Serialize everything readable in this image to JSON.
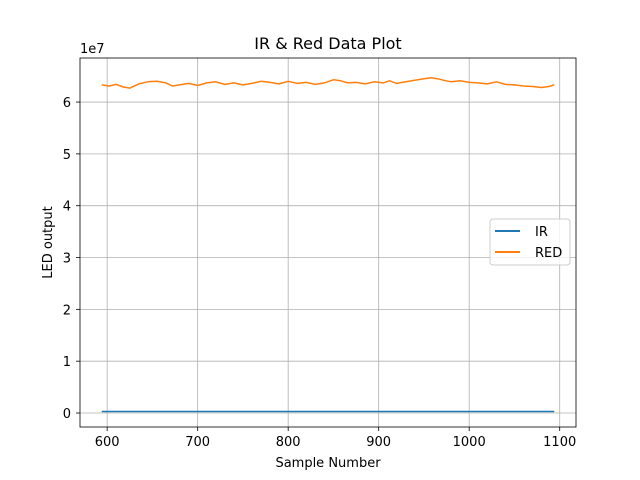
{
  "chart_data": {
    "type": "line",
    "title": "IR & Red Data Plot",
    "xlabel": "Sample Number",
    "ylabel": "LED output",
    "y_offset_label": "1e7",
    "xlim": [
      570,
      1118
    ],
    "ylim": [
      -2700000,
      68500000
    ],
    "x_ticks": [
      600,
      700,
      800,
      900,
      1000,
      1100
    ],
    "y_ticks": [
      0,
      10000000,
      20000000,
      30000000,
      40000000,
      50000000,
      60000000
    ],
    "y_tick_labels": [
      "0",
      "1",
      "2",
      "3",
      "4",
      "5",
      "6"
    ],
    "grid": true,
    "legend_position": "center-right",
    "series": [
      {
        "name": "IR",
        "color": "#1f77b4",
        "x": [
          594,
          1094
        ],
        "y": [
          300000,
          300000
        ]
      },
      {
        "name": "RED",
        "color": "#ff7f0e",
        "x": [
          594,
          602,
          610,
          618,
          625,
          635,
          645,
          655,
          665,
          672,
          680,
          690,
          700,
          710,
          720,
          730,
          740,
          750,
          760,
          770,
          780,
          790,
          800,
          810,
          820,
          830,
          840,
          850,
          858,
          866,
          875,
          885,
          895,
          905,
          912,
          920,
          930,
          940,
          950,
          958,
          965,
          972,
          980,
          990,
          1000,
          1010,
          1020,
          1030,
          1040,
          1050,
          1060,
          1070,
          1080,
          1088,
          1094
        ],
        "y": [
          63300000,
          63100000,
          63400000,
          62900000,
          62700000,
          63500000,
          63900000,
          64000000,
          63700000,
          63100000,
          63300000,
          63600000,
          63200000,
          63700000,
          63900000,
          63400000,
          63700000,
          63300000,
          63600000,
          64000000,
          63800000,
          63500000,
          64000000,
          63600000,
          63800000,
          63400000,
          63700000,
          64300000,
          64100000,
          63700000,
          63800000,
          63500000,
          63900000,
          63700000,
          64100000,
          63600000,
          63900000,
          64200000,
          64500000,
          64700000,
          64500000,
          64200000,
          63900000,
          64100000,
          63800000,
          63700000,
          63500000,
          63900000,
          63400000,
          63300000,
          63100000,
          63000000,
          62800000,
          63000000,
          63300000
        ]
      }
    ]
  }
}
